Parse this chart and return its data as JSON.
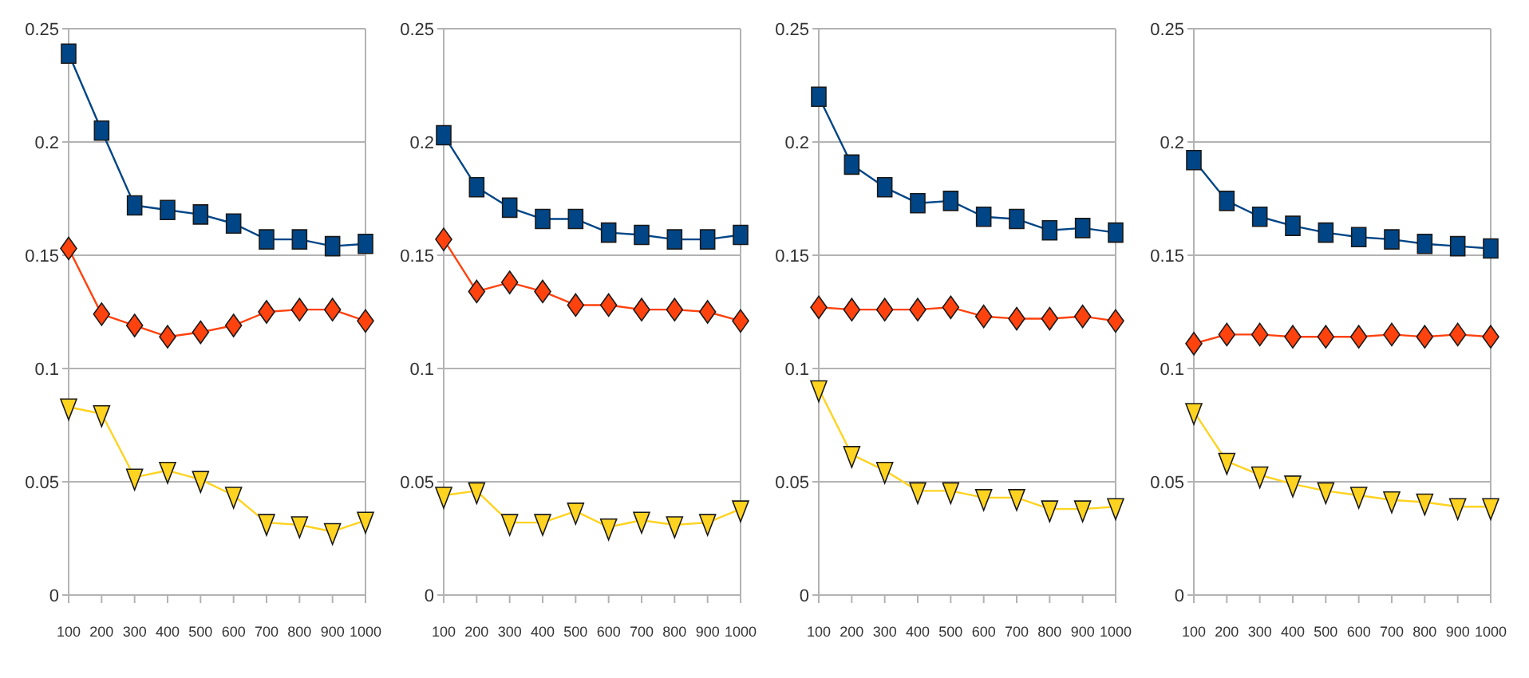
{
  "chart_data": [
    {
      "type": "line",
      "categories": [
        "100",
        "200",
        "300",
        "400",
        "500",
        "600",
        "700",
        "800",
        "900",
        "1000"
      ],
      "ylim": [
        0,
        0.25
      ],
      "yticks": [
        0,
        0.05,
        0.1,
        0.15,
        0.2,
        0.25
      ],
      "grid": "y",
      "series": [
        {
          "color": "#004586",
          "marker": "square",
          "values": [
            0.239,
            0.205,
            0.172,
            0.17,
            0.168,
            0.164,
            0.157,
            0.157,
            0.154,
            0.155
          ]
        },
        {
          "color": "#ff420e",
          "marker": "diamond",
          "values": [
            0.153,
            0.124,
            0.119,
            0.114,
            0.116,
            0.119,
            0.125,
            0.126,
            0.126,
            0.121
          ]
        },
        {
          "color": "#ffd320",
          "marker": "triangle",
          "values": [
            0.083,
            0.08,
            0.052,
            0.055,
            0.051,
            0.044,
            0.032,
            0.031,
            0.028,
            0.033
          ]
        }
      ]
    },
    {
      "type": "line",
      "categories": [
        "100",
        "200",
        "300",
        "400",
        "500",
        "600",
        "700",
        "800",
        "900",
        "1000"
      ],
      "ylim": [
        0,
        0.25
      ],
      "yticks": [
        0,
        0.05,
        0.1,
        0.15,
        0.2,
        0.25
      ],
      "grid": "y",
      "series": [
        {
          "color": "#004586",
          "marker": "square",
          "values": [
            0.203,
            0.18,
            0.171,
            0.166,
            0.166,
            0.16,
            0.159,
            0.157,
            0.157,
            0.159
          ]
        },
        {
          "color": "#ff420e",
          "marker": "diamond",
          "values": [
            0.157,
            0.134,
            0.138,
            0.134,
            0.128,
            0.128,
            0.126,
            0.126,
            0.125,
            0.121
          ]
        },
        {
          "color": "#ffd320",
          "marker": "triangle",
          "values": [
            0.044,
            0.046,
            0.032,
            0.032,
            0.037,
            0.03,
            0.033,
            0.031,
            0.032,
            0.038
          ]
        }
      ]
    },
    {
      "type": "line",
      "categories": [
        "100",
        "200",
        "300",
        "400",
        "500",
        "600",
        "700",
        "800",
        "900",
        "1000"
      ],
      "ylim": [
        0,
        0.25
      ],
      "yticks": [
        0,
        0.05,
        0.1,
        0.15,
        0.2,
        0.25
      ],
      "grid": "y",
      "series": [
        {
          "color": "#004586",
          "marker": "square",
          "values": [
            0.22,
            0.19,
            0.18,
            0.173,
            0.174,
            0.167,
            0.166,
            0.161,
            0.162,
            0.16
          ]
        },
        {
          "color": "#ff420e",
          "marker": "diamond",
          "values": [
            0.127,
            0.126,
            0.126,
            0.126,
            0.127,
            0.123,
            0.122,
            0.122,
            0.123,
            0.121
          ]
        },
        {
          "color": "#ffd320",
          "marker": "triangle",
          "values": [
            0.091,
            0.062,
            0.055,
            0.046,
            0.046,
            0.043,
            0.043,
            0.038,
            0.038,
            0.039
          ]
        }
      ]
    },
    {
      "type": "line",
      "categories": [
        "100",
        "200",
        "300",
        "400",
        "500",
        "600",
        "700",
        "800",
        "900",
        "1000"
      ],
      "ylim": [
        0,
        0.25
      ],
      "yticks": [
        0,
        0.05,
        0.1,
        0.15,
        0.2,
        0.25
      ],
      "grid": "y",
      "series": [
        {
          "color": "#004586",
          "marker": "square",
          "values": [
            0.192,
            0.174,
            0.167,
            0.163,
            0.16,
            0.158,
            0.157,
            0.155,
            0.154,
            0.153
          ]
        },
        {
          "color": "#ff420e",
          "marker": "diamond",
          "values": [
            0.111,
            0.115,
            0.115,
            0.114,
            0.114,
            0.114,
            0.115,
            0.114,
            0.115,
            0.114
          ]
        },
        {
          "color": "#ffd320",
          "marker": "triangle",
          "values": [
            0.081,
            0.059,
            0.053,
            0.049,
            0.046,
            0.044,
            0.042,
            0.041,
            0.039,
            0.039
          ]
        }
      ]
    }
  ]
}
